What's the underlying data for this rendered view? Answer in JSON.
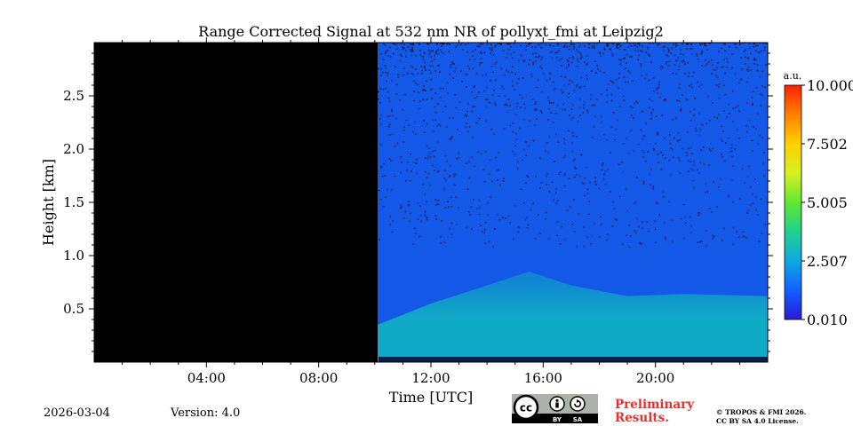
{
  "chart_data": {
    "type": "heatmap",
    "title": "Range Corrected Signal at 532 nm NR of pollyxt_fmi at Leipzig2",
    "xlabel": "Time [UTC]",
    "ylabel": "Height [km]",
    "xlim_hours": [
      0,
      24
    ],
    "ylim_km": [
      0,
      3.0
    ],
    "x_ticks": [
      {
        "value": 4,
        "label": "04:00"
      },
      {
        "value": 8,
        "label": "08:00"
      },
      {
        "value": 12,
        "label": "12:00"
      },
      {
        "value": 16,
        "label": "16:00"
      },
      {
        "value": 20,
        "label": "20:00"
      }
    ],
    "y_ticks": [
      {
        "value": 0.5,
        "label": "0.5"
      },
      {
        "value": 1.0,
        "label": "1.0"
      },
      {
        "value": 1.5,
        "label": "1.5"
      },
      {
        "value": 2.0,
        "label": "2.0"
      },
      {
        "value": 2.5,
        "label": "2.5"
      }
    ],
    "no_data_until_hour": 10.1,
    "colorbar": {
      "unit": "a.u.",
      "min": 0.01,
      "max": 10.0,
      "ticks": [
        {
          "value": 0.01,
          "label": "0.010"
        },
        {
          "value": 2.507,
          "label": "2.507"
        },
        {
          "value": 5.005,
          "label": "5.005"
        },
        {
          "value": 7.502,
          "label": "7.502"
        },
        {
          "value": 10.0,
          "label": "10.000"
        }
      ],
      "colormap": [
        "#2b1bd6",
        "#1060ff",
        "#10a8e0",
        "#20d090",
        "#60e830",
        "#d8f020",
        "#ffd000",
        "#ff8000",
        "#ff2000"
      ]
    },
    "aerosol_layer_top_km": [
      {
        "hour": 10.1,
        "km": 0.35
      },
      {
        "hour": 12.0,
        "km": 0.55
      },
      {
        "hour": 14.0,
        "km": 0.72
      },
      {
        "hour": 15.5,
        "km": 0.85
      },
      {
        "hour": 17.0,
        "km": 0.72
      },
      {
        "hour": 19.0,
        "km": 0.62
      },
      {
        "hour": 21.0,
        "km": 0.64
      },
      {
        "hour": 24.0,
        "km": 0.62
      }
    ]
  },
  "footer": {
    "date": "2026-03-04",
    "version": "Version: 4.0",
    "preliminary_line1": "Preliminary",
    "preliminary_line2": "Results.",
    "copyright_line1": "© TROPOS & FMI 2026.",
    "copyright_line2": "CC BY SA 4.0 License.",
    "license_badge_cc": "cc",
    "license_badge_by": "BY",
    "license_badge_sa": "SA"
  }
}
